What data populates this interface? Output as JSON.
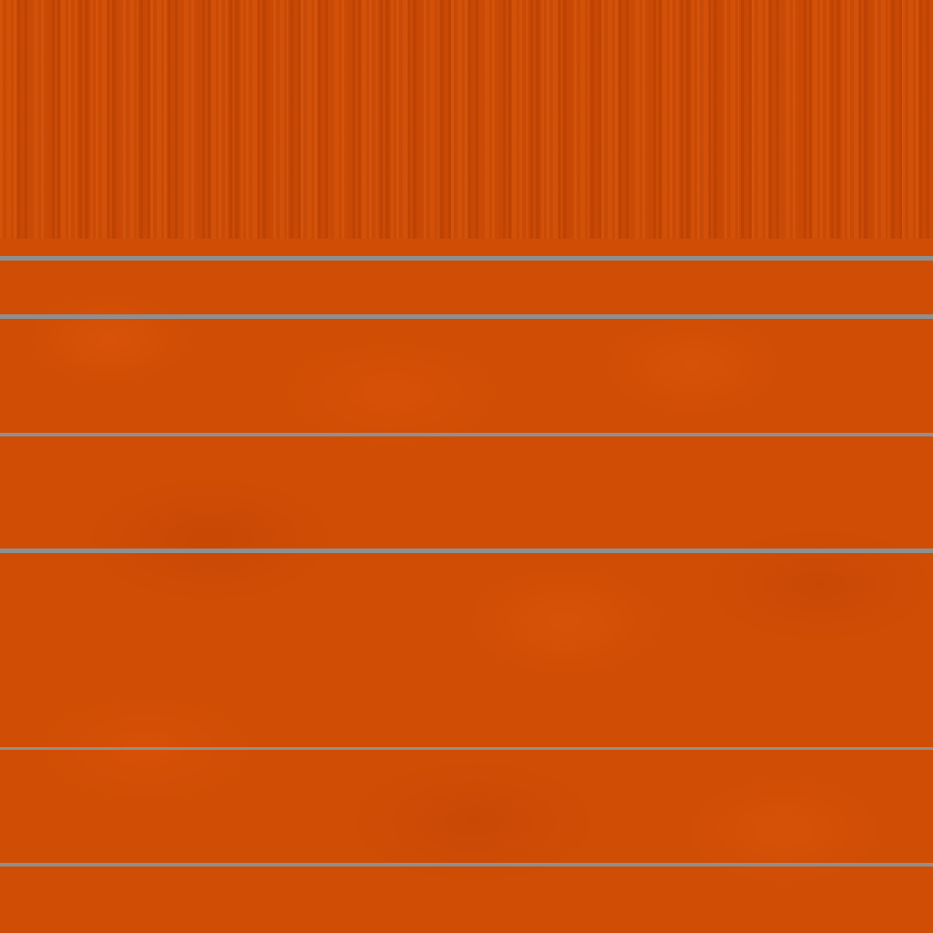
{
  "texture": {
    "subject": "track-surface",
    "colors": {
      "surface": "#d04d05",
      "stripe_band": "#cc4a03",
      "line": "#8f8f8f"
    },
    "line_count": 6
  }
}
